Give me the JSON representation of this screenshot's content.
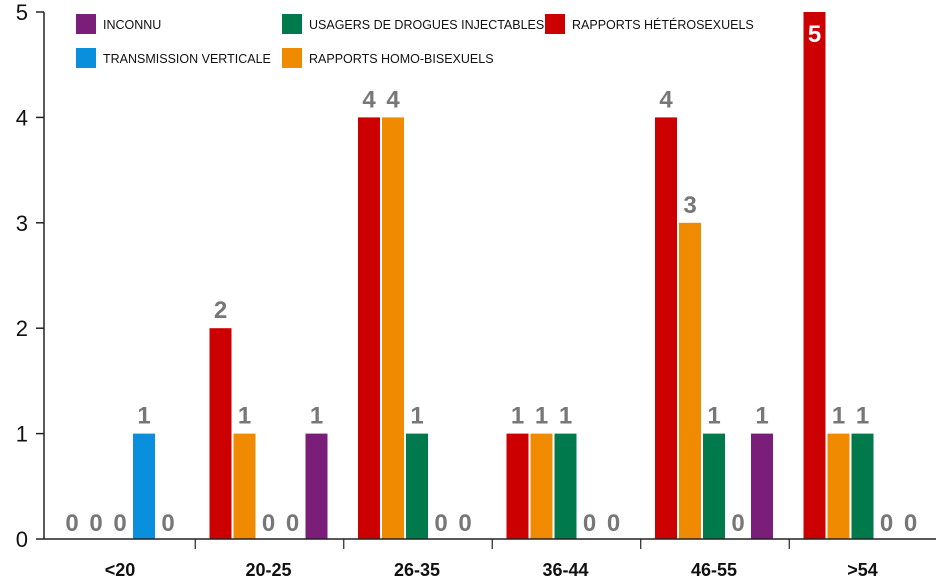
{
  "chart_data": {
    "type": "bar",
    "title": "",
    "xlabel": "",
    "ylabel": "",
    "ylim": [
      0,
      5
    ],
    "yticks": [
      "0",
      "1",
      "2",
      "3",
      "4",
      "5"
    ],
    "categories": [
      "<20",
      "20-25",
      "26-35",
      "36-44",
      "46-55",
      ">54"
    ],
    "legend_position": "top",
    "legend": [
      {
        "name": "INCONNU",
        "color": "#7b1e7a"
      },
      {
        "name": "USAGERS DE DROGUES INJECTABLES",
        "color": "#007a4d"
      },
      {
        "name": "RAPPORTS HÉTÉROSEXUELS",
        "color": "#cc0000"
      },
      {
        "name": "TRANSMISSION VERTICALE",
        "color": "#0a8fdc"
      },
      {
        "name": "RAPPORTS HOMO-BISEXUELS",
        "color": "#f08a00"
      }
    ],
    "groups": [
      {
        "category": "<20",
        "bars": [
          {
            "series": "RAPPORTS HÉTÉROSEXUELS",
            "value": 0,
            "label": "0",
            "color": "#cc0000"
          },
          {
            "series": "RAPPORTS HOMO-BISEXUELS",
            "value": 0,
            "label": "0",
            "color": "#f08a00"
          },
          {
            "series": "USAGERS DE DROGUES INJECTABLES",
            "value": 0,
            "label": "0",
            "color": "#007a4d"
          },
          {
            "series": "TRANSMISSION VERTICALE",
            "value": 1,
            "label": "1",
            "color": "#0a8fdc"
          },
          {
            "series": "INCONNU",
            "value": 0,
            "label": "0",
            "color": "#7b1e7a"
          }
        ]
      },
      {
        "category": "20-25",
        "bars": [
          {
            "series": "RAPPORTS HÉTÉROSEXUELS",
            "value": 2,
            "label": "2",
            "color": "#cc0000"
          },
          {
            "series": "RAPPORTS HOMO-BISEXUELS",
            "value": 1,
            "label": "1",
            "color": "#f08a00"
          },
          {
            "series": "USAGERS DE DROGUES INJECTABLES",
            "value": 0,
            "label": "0",
            "color": "#007a4d"
          },
          {
            "series": "TRANSMISSION VERTICALE",
            "value": 0,
            "label": "0",
            "color": "#0a8fdc"
          },
          {
            "series": "INCONNU",
            "value": 1,
            "label": "1",
            "color": "#7b1e7a"
          }
        ]
      },
      {
        "category": "26-35",
        "bars": [
          {
            "series": "RAPPORTS HÉTÉROSEXUELS",
            "value": 4,
            "label": "4",
            "color": "#cc0000"
          },
          {
            "series": "RAPPORTS HOMO-BISEXUELS",
            "value": 4,
            "label": "4",
            "color": "#f08a00"
          },
          {
            "series": "USAGERS DE DROGUES INJECTABLES",
            "value": 1,
            "label": "1",
            "color": "#007a4d"
          },
          {
            "series": "TRANSMISSION VERTICALE",
            "value": 0,
            "label": "0",
            "color": "#0a8fdc"
          },
          {
            "series": "INCONNU",
            "value": 0,
            "label": "0",
            "color": "#7b1e7a"
          }
        ]
      },
      {
        "category": "36-44",
        "bars": [
          {
            "series": "RAPPORTS HÉTÉROSEXUELS",
            "value": 1,
            "label": "1",
            "color": "#cc0000"
          },
          {
            "series": "RAPPORTS HOMO-BISEXUELS",
            "value": 1,
            "label": "1",
            "color": "#f08a00"
          },
          {
            "series": "USAGERS DE DROGUES INJECTABLES",
            "value": 1,
            "label": "1",
            "color": "#007a4d"
          },
          {
            "series": "TRANSMISSION VERTICALE",
            "value": 0,
            "label": "0",
            "color": "#0a8fdc"
          },
          {
            "series": "INCONNU",
            "value": 0,
            "label": "0",
            "color": "#7b1e7a"
          }
        ]
      },
      {
        "category": "46-55",
        "bars": [
          {
            "series": "RAPPORTS HÉTÉROSEXUELS",
            "value": 4,
            "label": "4",
            "color": "#cc0000"
          },
          {
            "series": "RAPPORTS HOMO-BISEXUELS",
            "value": 3,
            "label": "3",
            "color": "#f08a00"
          },
          {
            "series": "USAGERS DE DROGUES INJECTABLES",
            "value": 1,
            "label": "1",
            "color": "#007a4d"
          },
          {
            "series": "TRANSMISSION VERTICALE",
            "value": 0,
            "label": "0",
            "color": "#0a8fdc"
          },
          {
            "series": "INCONNU",
            "value": 1,
            "label": "1",
            "color": "#7b1e7a"
          }
        ]
      },
      {
        "category": ">54",
        "bars": [
          {
            "series": "RAPPORTS HÉTÉROSEXUELS",
            "value": 5,
            "label": "5",
            "color": "#cc0000"
          },
          {
            "series": "RAPPORTS HOMO-BISEXUELS",
            "value": 1,
            "label": "1",
            "color": "#f08a00"
          },
          {
            "series": "USAGERS DE DROGUES INJECTABLES",
            "value": 1,
            "label": "1",
            "color": "#007a4d"
          },
          {
            "series": "TRANSMISSION VERTICALE",
            "value": 0,
            "label": "0",
            "color": "#0a8fdc"
          },
          {
            "series": "INCONNU",
            "value": 0,
            "label": "0",
            "color": "#7b1e7a"
          }
        ]
      }
    ]
  }
}
